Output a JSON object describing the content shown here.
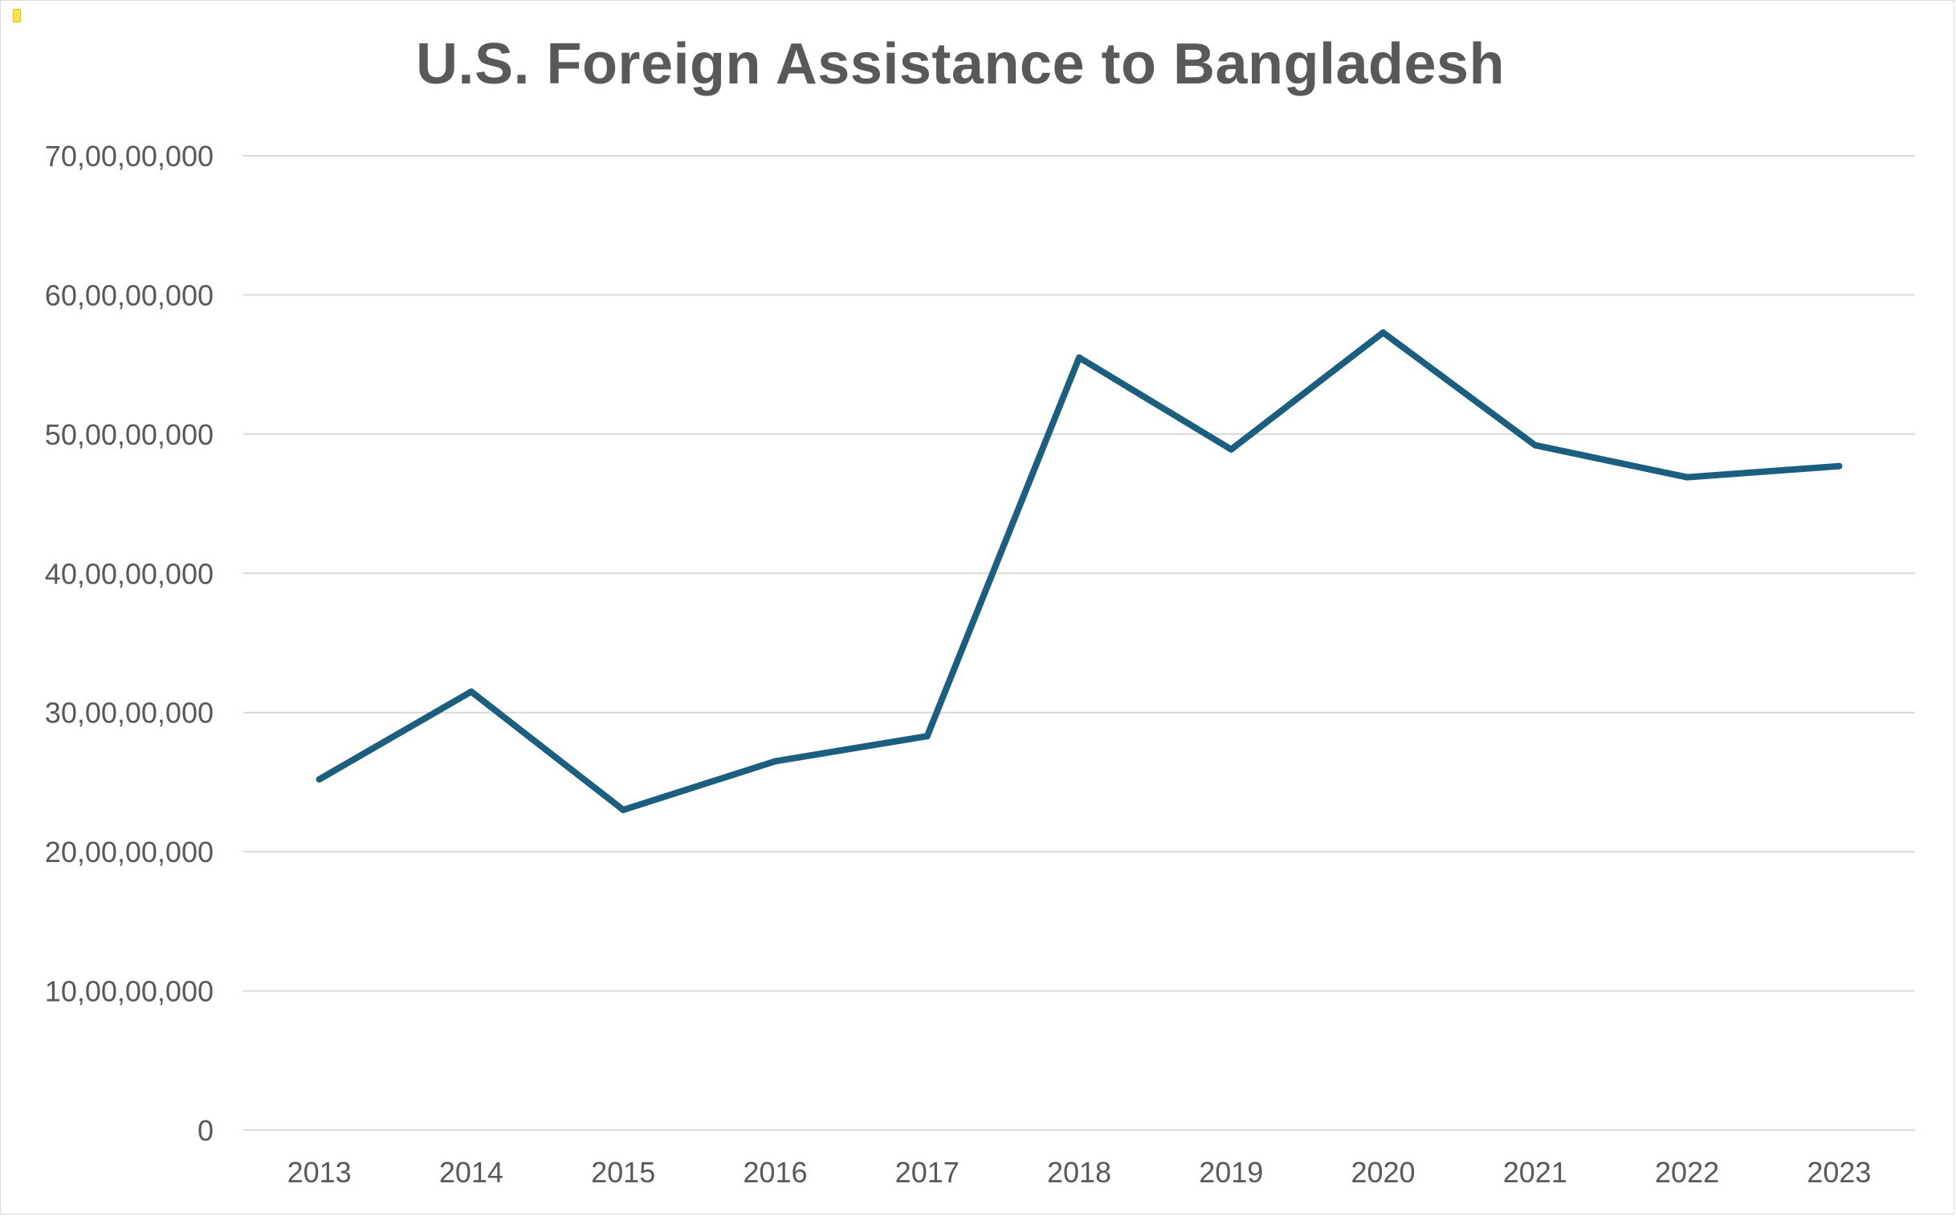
{
  "chart_data": {
    "type": "line",
    "title": "U.S. Foreign Assistance to Bangladesh",
    "xlabel": "",
    "ylabel": "",
    "categories": [
      "2013",
      "2014",
      "2015",
      "2016",
      "2017",
      "2018",
      "2019",
      "2020",
      "2021",
      "2022",
      "2023"
    ],
    "series": [
      {
        "values": [
          252000000,
          315000000,
          230000000,
          265000000,
          283000000,
          555000000,
          489000000,
          573000000,
          492000000,
          469000000,
          477000000
        ],
        "color": "#1a5e80"
      }
    ],
    "ylim": [
      0,
      700000000
    ],
    "yticks": [
      0,
      100000000,
      200000000,
      300000000,
      400000000,
      500000000,
      600000000,
      700000000
    ],
    "ytick_labels": [
      "0",
      "10,00,00,000",
      "20,00,00,000",
      "30,00,00,000",
      "40,00,00,000",
      "50,00,00,000",
      "60,00,00,000",
      "70,00,00,000"
    ],
    "grid": true,
    "legend": "none"
  }
}
